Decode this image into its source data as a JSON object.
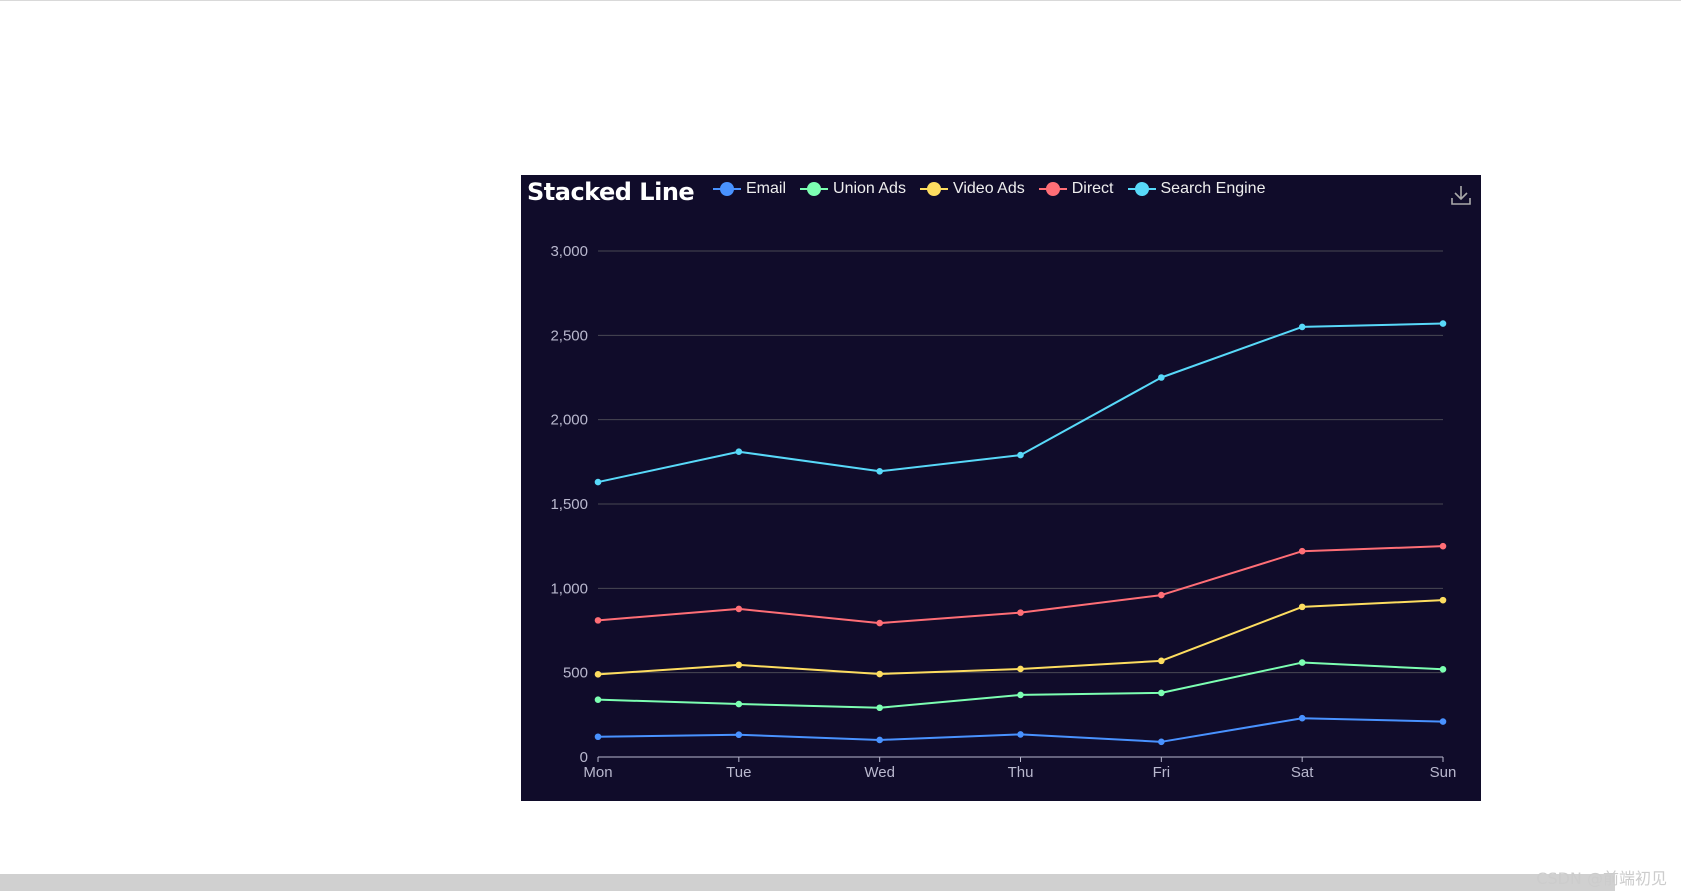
{
  "page": {
    "watermark": "CSDN @前端初见"
  },
  "toolbar": {
    "download_icon": "download-icon"
  },
  "chart_data": {
    "type": "line",
    "title": "Stacked Line",
    "xlabel": "",
    "ylabel": "",
    "categories": [
      "Mon",
      "Tue",
      "Wed",
      "Thu",
      "Fri",
      "Sat",
      "Sun"
    ],
    "ylim": [
      0,
      3000
    ],
    "yticks": [
      0,
      500,
      1000,
      1500,
      2000,
      2500,
      3000
    ],
    "ytick_labels": [
      "0",
      "500",
      "1,000",
      "1,500",
      "2,000",
      "2,500",
      "3,000"
    ],
    "grid": true,
    "legend_position": "top",
    "background": "#100c2a",
    "series": [
      {
        "name": "Email",
        "color": "#4992ff",
        "values": [
          120,
          132,
          101,
          134,
          90,
          230,
          210
        ]
      },
      {
        "name": "Union Ads",
        "color": "#7cffb2",
        "values": [
          340,
          314,
          292,
          368,
          380,
          560,
          520
        ]
      },
      {
        "name": "Video Ads",
        "color": "#fddd60",
        "values": [
          490,
          546,
          492,
          522,
          570,
          890,
          930
        ]
      },
      {
        "name": "Direct",
        "color": "#ff6e76",
        "values": [
          810,
          878,
          794,
          856,
          960,
          1220,
          1250
        ]
      },
      {
        "name": "Search Engine",
        "color": "#58d9f9",
        "values": [
          1630,
          1810,
          1694,
          1790,
          2250,
          2550,
          2570
        ]
      }
    ]
  }
}
